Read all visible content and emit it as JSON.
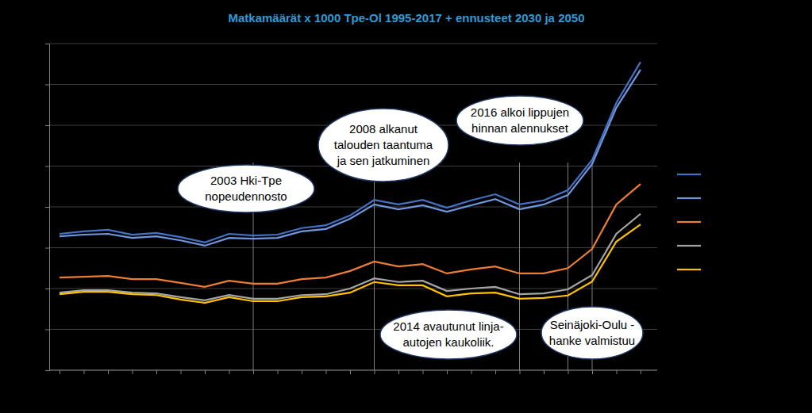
{
  "chart_data": {
    "type": "line",
    "title": "Matkamäärät x 1000 Tpe-Ol 1995-2017 + ennusteet 2030 ja 2050",
    "categories": [
      null,
      null,
      null,
      null,
      null,
      null,
      null,
      null,
      null,
      null,
      null,
      null,
      null,
      null,
      null,
      null,
      null,
      null,
      null,
      null,
      null,
      null,
      null,
      null,
      null
    ],
    "series": [
      {
        "color": "#4472c4",
        "values": [
          3.34,
          3.4,
          3.44,
          3.32,
          3.36,
          3.26,
          3.13,
          3.34,
          3.3,
          3.32,
          3.48,
          3.55,
          3.79,
          4.17,
          4.06,
          4.17,
          3.98,
          4.16,
          4.31,
          4.06,
          4.16,
          4.41,
          5.15,
          6.55,
          7.55
        ]
      },
      {
        "color": "#6f97e0",
        "values": [
          3.28,
          3.32,
          3.34,
          3.24,
          3.28,
          3.18,
          3.05,
          3.24,
          3.22,
          3.24,
          3.4,
          3.46,
          3.71,
          4.06,
          3.94,
          4.04,
          3.88,
          4.04,
          4.19,
          3.94,
          4.06,
          4.29,
          5.05,
          6.43,
          7.36
        ]
      },
      {
        "color": "#ed7d31",
        "values": [
          2.27,
          2.29,
          2.31,
          2.23,
          2.23,
          2.14,
          2.04,
          2.19,
          2.12,
          2.12,
          2.23,
          2.27,
          2.43,
          2.66,
          2.54,
          2.6,
          2.37,
          2.47,
          2.54,
          2.37,
          2.37,
          2.5,
          2.97,
          4.06,
          4.56
        ]
      },
      {
        "color": "#a5a5a5",
        "values": [
          1.9,
          1.96,
          1.96,
          1.9,
          1.88,
          1.79,
          1.71,
          1.84,
          1.75,
          1.75,
          1.84,
          1.86,
          2.0,
          2.25,
          2.16,
          2.19,
          1.94,
          2.0,
          2.04,
          1.86,
          1.88,
          1.98,
          2.33,
          3.34,
          3.83
        ]
      },
      {
        "color": "#ffc000",
        "values": [
          1.86,
          1.92,
          1.92,
          1.86,
          1.84,
          1.73,
          1.65,
          1.79,
          1.69,
          1.69,
          1.79,
          1.81,
          1.9,
          2.16,
          2.08,
          2.08,
          1.81,
          1.88,
          1.9,
          1.75,
          1.77,
          1.83,
          2.17,
          3.15,
          3.57
        ]
      }
    ],
    "ylim": [
      0,
      8
    ],
    "yticks": [
      0,
      1,
      2,
      3,
      4,
      5,
      6,
      7,
      8
    ],
    "grid": true,
    "tick_labels": false,
    "legend": "right",
    "annotations": [
      {
        "x": 8,
        "text": [
          "2003 Hki-Tpe",
          "nopeudennosto"
        ]
      },
      {
        "x": 13,
        "text": [
          "2008 alkanut",
          "talouden taantuma",
          "ja sen jatkuminen"
        ]
      },
      {
        "x": 21,
        "text": [
          "2016 alkoi lippujen",
          "hinnan alennukset"
        ]
      },
      {
        "x": 19,
        "text": [
          "2014 avautunut linja-",
          "autojen kaukoliik."
        ]
      },
      {
        "x": 22,
        "text": [
          "Seinäjoki-Oulu -",
          "hanke valmistuu"
        ]
      }
    ]
  }
}
